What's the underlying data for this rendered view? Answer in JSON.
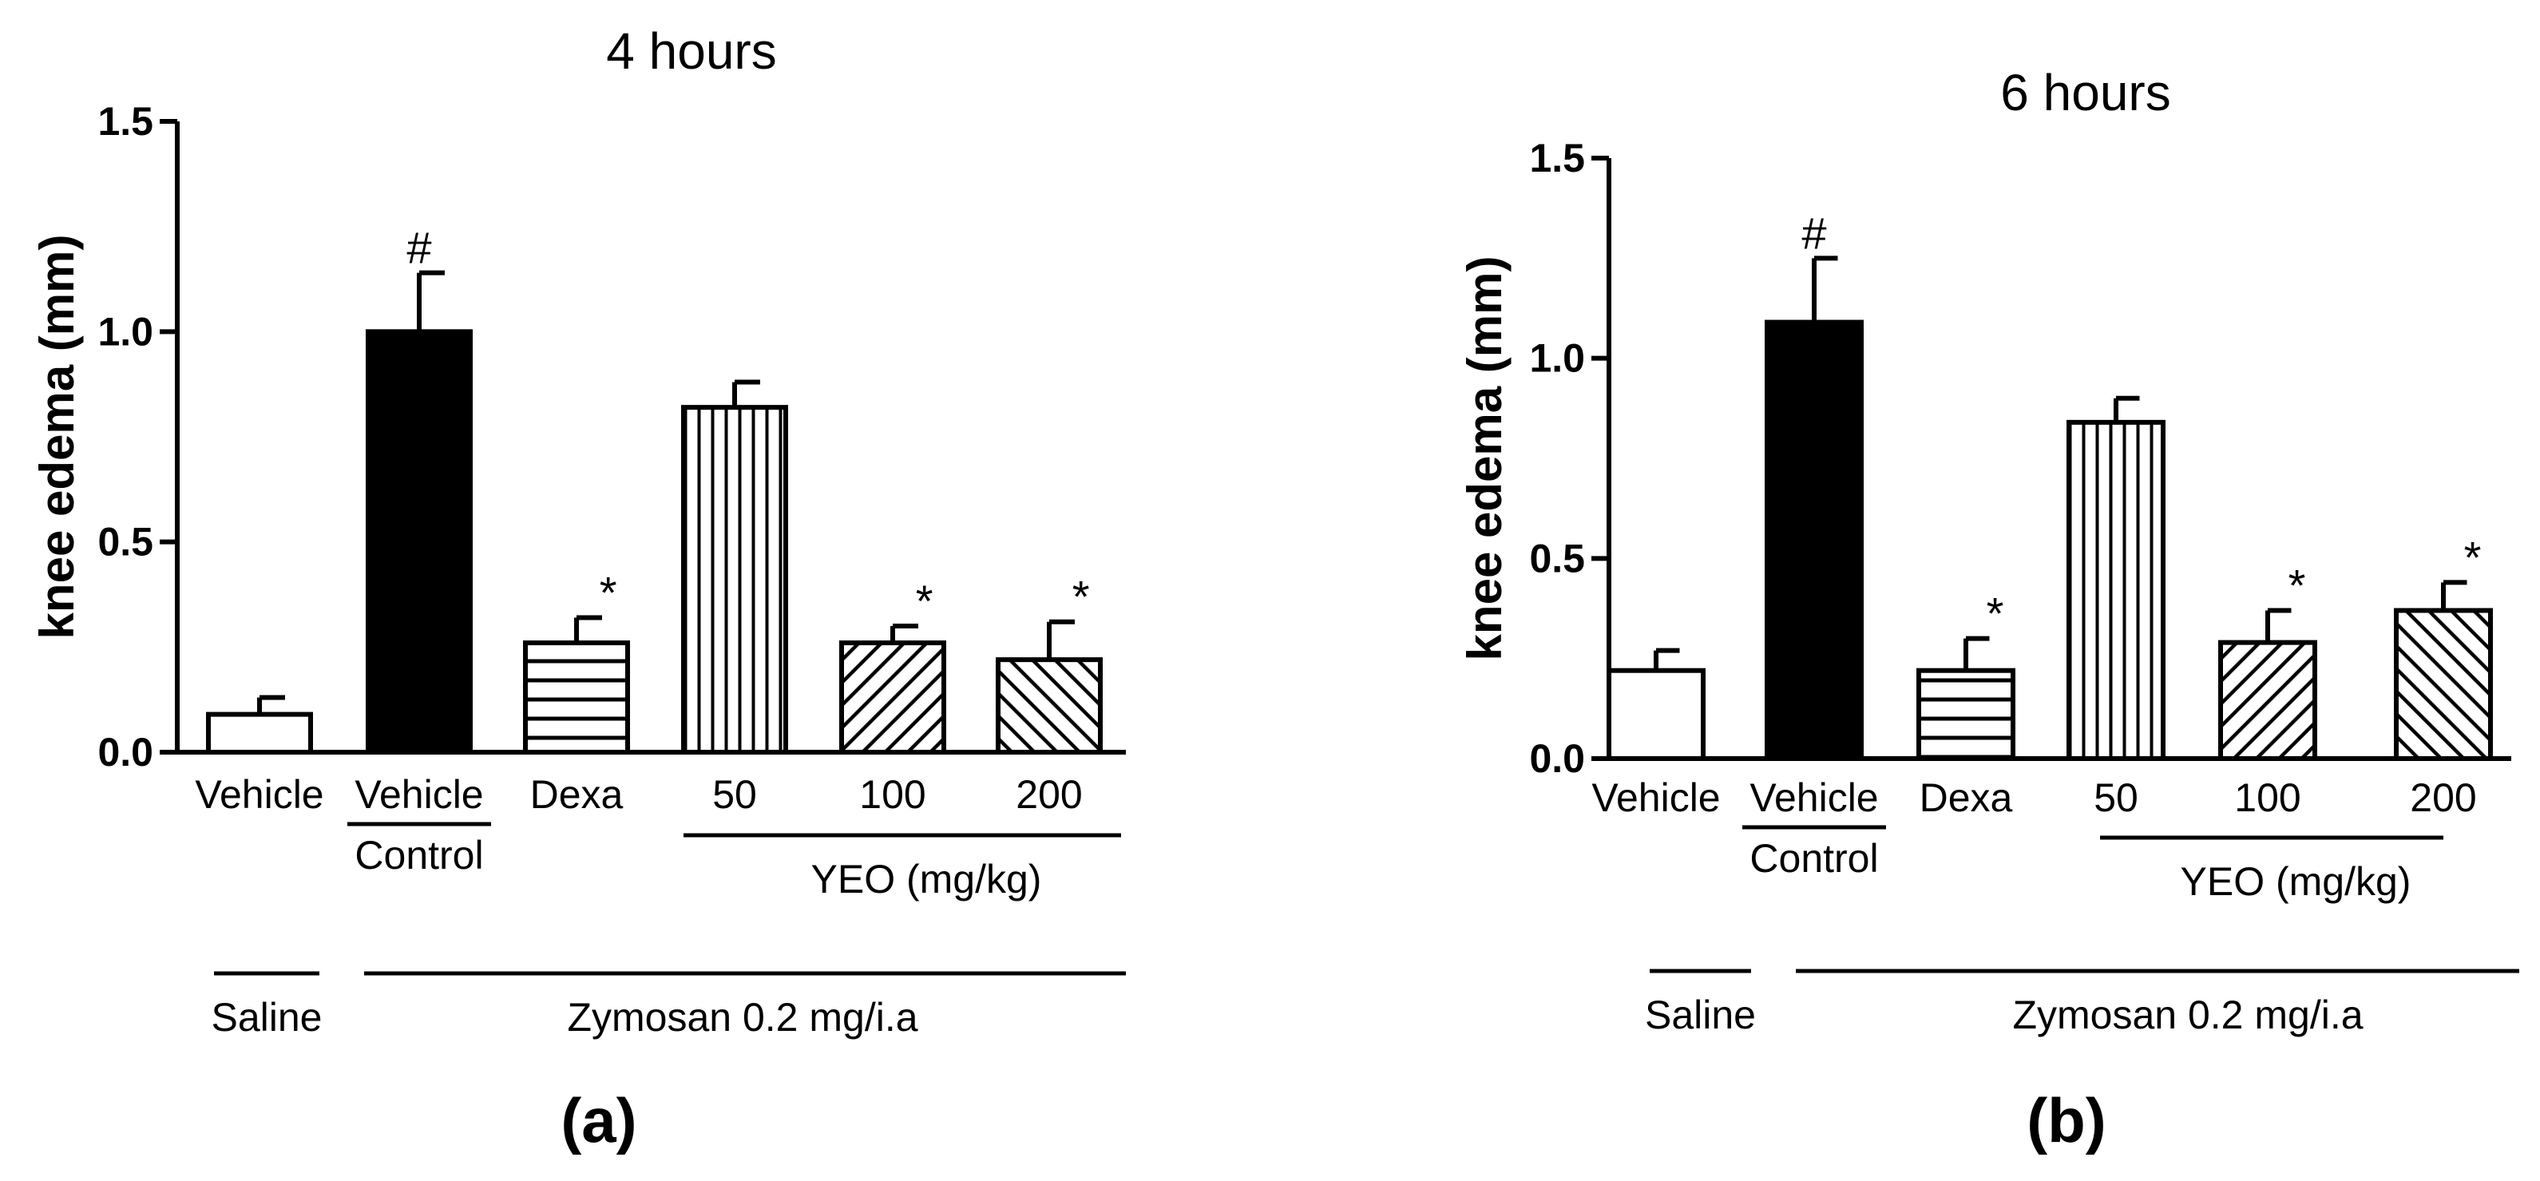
{
  "chart_data": [
    {
      "type": "bar",
      "panel_label": "(a)",
      "title": "4 hours",
      "ylabel": "knee edema (mm)",
      "ylim": [
        0,
        1.5
      ],
      "yticks": [
        "0.0",
        "0.5",
        "1.0",
        "1.5"
      ],
      "bars": [
        {
          "id": "vehicle",
          "label": "Vehicle",
          "value": 0.09,
          "error": 0.04,
          "pattern": "white",
          "sig": ""
        },
        {
          "id": "vehicle-control",
          "label": "Vehicle",
          "sublabel": "Control",
          "value": 1.0,
          "error": 0.14,
          "pattern": "black",
          "sig": "#"
        },
        {
          "id": "dexa",
          "label": "Dexa",
          "value": 0.26,
          "error": 0.06,
          "pattern": "hlines",
          "sig": "*"
        },
        {
          "id": "yeo-50",
          "label": "50",
          "value": 0.82,
          "error": 0.06,
          "pattern": "vlines",
          "sig": ""
        },
        {
          "id": "yeo-100",
          "label": "100",
          "value": 0.26,
          "error": 0.04,
          "pattern": "diag-up",
          "sig": "*"
        },
        {
          "id": "yeo-200",
          "label": "200",
          "value": 0.22,
          "error": 0.09,
          "pattern": "diag-down",
          "sig": "*"
        }
      ],
      "group_label_yeo": "YEO (mg/kg)",
      "group_label_saline": "Saline",
      "group_label_zymosan": "Zymosan 0.2 mg/i.a"
    },
    {
      "type": "bar",
      "panel_label": "(b)",
      "title": "6 hours",
      "ylabel": "knee edema (mm)",
      "ylim": [
        0,
        1.5
      ],
      "yticks": [
        "0.0",
        "0.5",
        "1.0",
        "1.5"
      ],
      "bars": [
        {
          "id": "vehicle",
          "label": "Vehicle",
          "value": 0.22,
          "error": 0.05,
          "pattern": "white",
          "sig": ""
        },
        {
          "id": "vehicle-control",
          "label": "Vehicle",
          "sublabel": "Control",
          "value": 1.09,
          "error": 0.16,
          "pattern": "black",
          "sig": "#"
        },
        {
          "id": "dexa",
          "label": "Dexa",
          "value": 0.22,
          "error": 0.08,
          "pattern": "hlines",
          "sig": "*"
        },
        {
          "id": "yeo-50",
          "label": "50",
          "value": 0.84,
          "error": 0.06,
          "pattern": "vlines",
          "sig": ""
        },
        {
          "id": "yeo-100",
          "label": "100",
          "value": 0.29,
          "error": 0.08,
          "pattern": "diag-up",
          "sig": "*"
        },
        {
          "id": "yeo-200",
          "label": "200",
          "value": 0.37,
          "error": 0.07,
          "pattern": "diag-down",
          "sig": "*"
        }
      ],
      "group_label_yeo": "YEO (mg/kg)",
      "group_label_saline": "Saline",
      "group_label_zymosan": "Zymosan 0.2 mg/i.a"
    }
  ]
}
